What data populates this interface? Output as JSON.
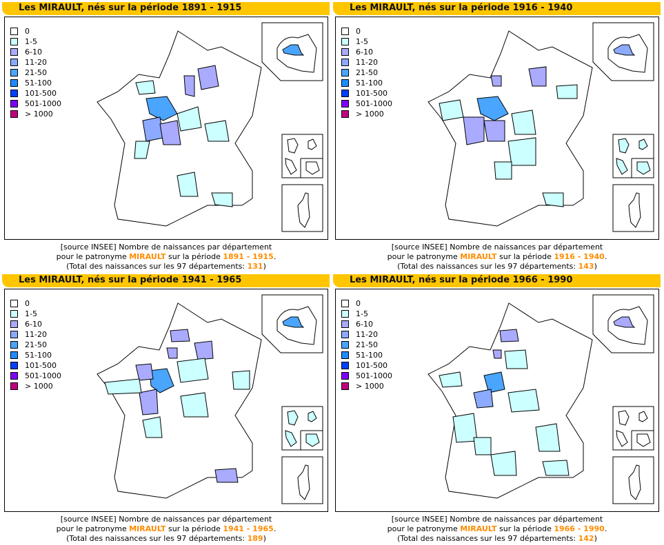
{
  "legend": [
    {
      "label": "0",
      "color": "#ffffff"
    },
    {
      "label": "1-5",
      "color": "#ccffff"
    },
    {
      "label": "6-10",
      "color": "#aaaaff"
    },
    {
      "label": "11-20",
      "color": "#8caaff"
    },
    {
      "label": "21-50",
      "color": "#4aa5ff"
    },
    {
      "label": "51-100",
      "color": "#1e8cff"
    },
    {
      "label": "101-500",
      "color": "#0040ff"
    },
    {
      "label": "501-1000",
      "color": "#8000ff"
    },
    {
      "label": "> 1000",
      "color": "#c0007f"
    }
  ],
  "caption": {
    "line1": "[source INSEE] Nombre de naissances par département",
    "line2_pre": "pour le patronyme ",
    "name": "MIRAULT",
    "line2_mid": " sur la période ",
    "line3_pre": "(Total des naissances sur les 97 départements: "
  },
  "panels": [
    {
      "title": "Les MIRAULT, nés sur la période 1891 - 1915",
      "period": "1891 - 1915",
      "total": "131"
    },
    {
      "title": "Les MIRAULT, nés sur la période 1916 - 1940",
      "period": "1916 - 1940",
      "total": "143"
    },
    {
      "title": "Les MIRAULT, nés sur la période 1941 - 1965",
      "period": "1941 - 1965",
      "total": "189"
    },
    {
      "title": "Les MIRAULT, nés sur la période 1966 - 1990",
      "period": "1966 - 1990",
      "total": "142"
    }
  ]
}
